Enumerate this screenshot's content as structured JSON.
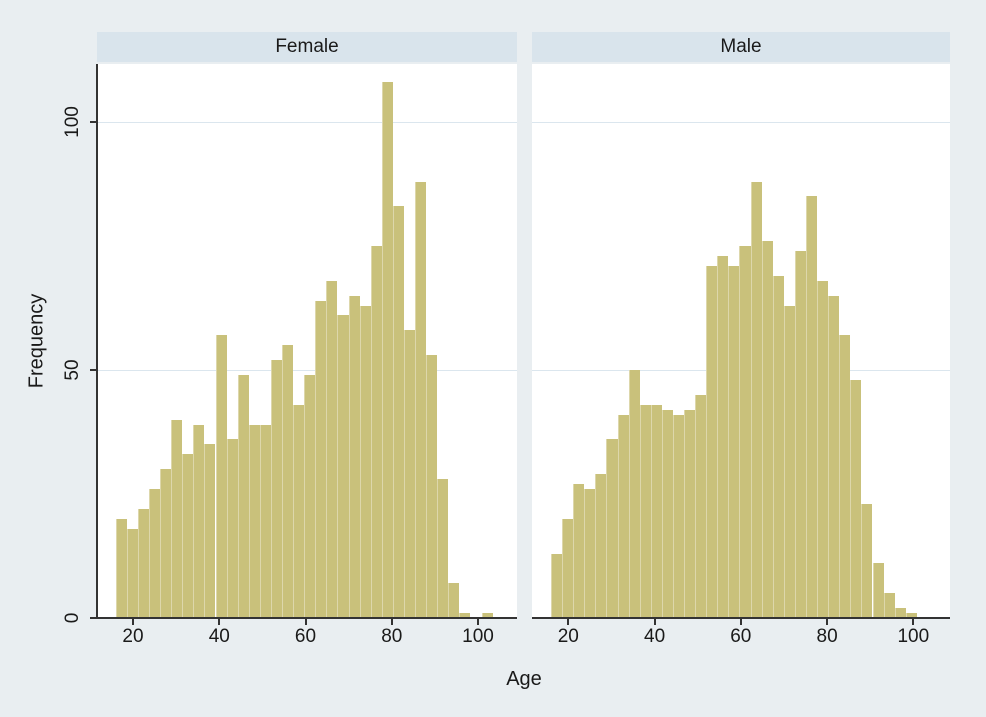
{
  "colors": {
    "page_background": "#e9eef1",
    "header_background": "#d9e4ec",
    "plot_background": "#ffffff",
    "gridline": "#dbe6ee",
    "bar_fill": "#c9c17b",
    "bar_separator": "#ddd7ab",
    "axis_line": "#333333",
    "text": "#1a1a1a"
  },
  "panels": [
    {
      "title": "Female"
    },
    {
      "title": "Male"
    }
  ],
  "axis_titles": {
    "x": "Age",
    "y": "Frequency"
  },
  "chart_data": [
    {
      "type": "bar",
      "subtype": "histogram",
      "title": "Female",
      "xlabel": "Age",
      "ylabel": "Frequency",
      "bin_start": 16,
      "bin_width": 2.57,
      "x_ticks": [
        20,
        40,
        60,
        80,
        100
      ],
      "y_ticks": [
        0,
        50,
        100
      ],
      "ylim": [
        0,
        111
      ],
      "xlim": [
        11.6,
        108
      ],
      "grid": "horizontal",
      "frequencies": [
        20,
        18,
        22,
        26,
        30,
        40,
        33,
        39,
        35,
        57,
        36,
        49,
        39,
        39,
        52,
        55,
        43,
        49,
        64,
        68,
        61,
        65,
        63,
        75,
        108,
        83,
        58,
        88,
        53,
        28,
        7,
        1,
        0,
        1
      ]
    },
    {
      "type": "bar",
      "subtype": "histogram",
      "title": "Male",
      "xlabel": "Age",
      "ylabel": "Frequency",
      "bin_start": 16,
      "bin_width": 2.57,
      "x_ticks": [
        20,
        40,
        60,
        80,
        100
      ],
      "y_ticks": [
        0,
        50,
        100
      ],
      "ylim": [
        0,
        111
      ],
      "xlim": [
        11.6,
        108
      ],
      "grid": "horizontal",
      "frequencies": [
        13,
        20,
        27,
        26,
        29,
        36,
        41,
        50,
        43,
        43,
        42,
        41,
        42,
        45,
        71,
        73,
        71,
        75,
        88,
        76,
        69,
        63,
        74,
        85,
        68,
        65,
        57,
        48,
        23,
        11,
        5,
        2,
        1
      ]
    }
  ]
}
